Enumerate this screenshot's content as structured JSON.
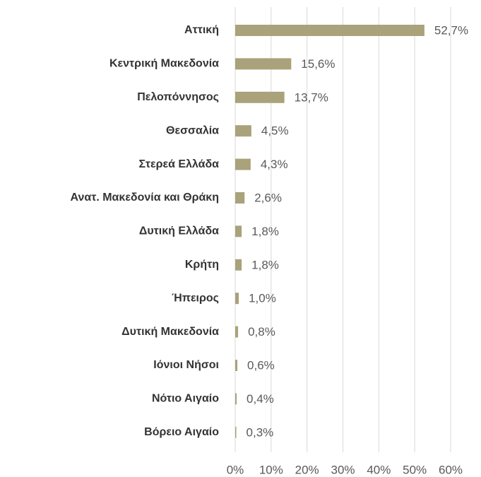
{
  "chart_data": {
    "type": "bar",
    "orientation": "horizontal",
    "categories": [
      "Αττική",
      "Κεντρική Μακεδονία",
      "Πελοπόννησος",
      "Θεσσαλία",
      "Στερεά Ελλάδα",
      "Ανατ. Μακεδονία και Θράκη",
      "Δυτική Ελλάδα",
      "Κρήτη",
      "Ήπειρος",
      "Δυτική Μακεδονία",
      "Ιόνιοι Νήσοι",
      "Νότιο Αιγαίο",
      "Βόρειο Αιγαίο"
    ],
    "values": [
      52.7,
      15.6,
      13.7,
      4.5,
      4.3,
      2.6,
      1.8,
      1.8,
      1.0,
      0.8,
      0.6,
      0.4,
      0.3
    ],
    "value_labels": [
      "52,7%",
      "15,6%",
      "13,7%",
      "4,5%",
      "4,3%",
      "2,6%",
      "1,8%",
      "1,8%",
      "1,0%",
      "0,8%",
      "0,6%",
      "0,4%",
      "0,3%"
    ],
    "color": "#a9a27a",
    "xlim": [
      0,
      60
    ],
    "xticks": [
      {
        "value": 0,
        "label": "0%"
      },
      {
        "value": 10,
        "label": "10%"
      },
      {
        "value": 20,
        "label": "20%"
      },
      {
        "value": 30,
        "label": "30%"
      },
      {
        "value": 40,
        "label": "40%"
      },
      {
        "value": 50,
        "label": "50%"
      },
      {
        "value": 60,
        "label": "60%"
      }
    ],
    "grid": true
  }
}
